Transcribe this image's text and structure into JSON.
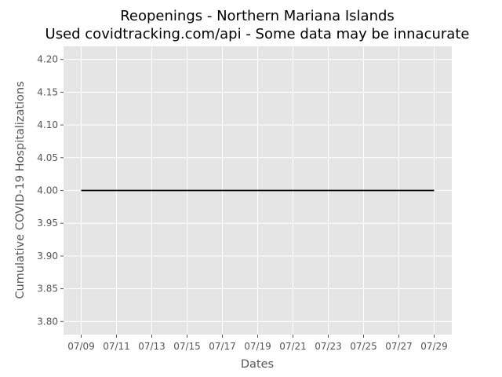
{
  "chart_data": {
    "type": "line",
    "title": "Reopenings - Northern Mariana Islands",
    "subtitle": "Used covidtracking.com/api - Some data may be innacurate",
    "xlabel": "Dates",
    "ylabel": "Cumulative COVID-19 Hospitalizations",
    "x_ticks": [
      "07/09",
      "07/11",
      "07/13",
      "07/15",
      "07/17",
      "07/19",
      "07/21",
      "07/23",
      "07/25",
      "07/27",
      "07/29"
    ],
    "y_ticks": [
      "3.80",
      "3.85",
      "3.90",
      "3.95",
      "4.00",
      "4.05",
      "4.10",
      "4.15",
      "4.20"
    ],
    "xlim": [
      "07/08",
      "07/30"
    ],
    "ylim": [
      3.78,
      4.22
    ],
    "grid": true,
    "series": [
      {
        "x": [
          "07/09",
          "07/10",
          "07/11",
          "07/12",
          "07/13",
          "07/14",
          "07/15",
          "07/16",
          "07/17",
          "07/18",
          "07/19",
          "07/20",
          "07/21",
          "07/22",
          "07/23",
          "07/24",
          "07/25",
          "07/26",
          "07/27",
          "07/28",
          "07/29"
        ],
        "values": [
          4,
          4,
          4,
          4,
          4,
          4,
          4,
          4,
          4,
          4,
          4,
          4,
          4,
          4,
          4,
          4,
          4,
          4,
          4,
          4,
          4
        ],
        "color": "#000000"
      }
    ],
    "colors": {
      "background": "#e5e5e5",
      "grid": "#ffffff",
      "line": "#000000"
    }
  }
}
